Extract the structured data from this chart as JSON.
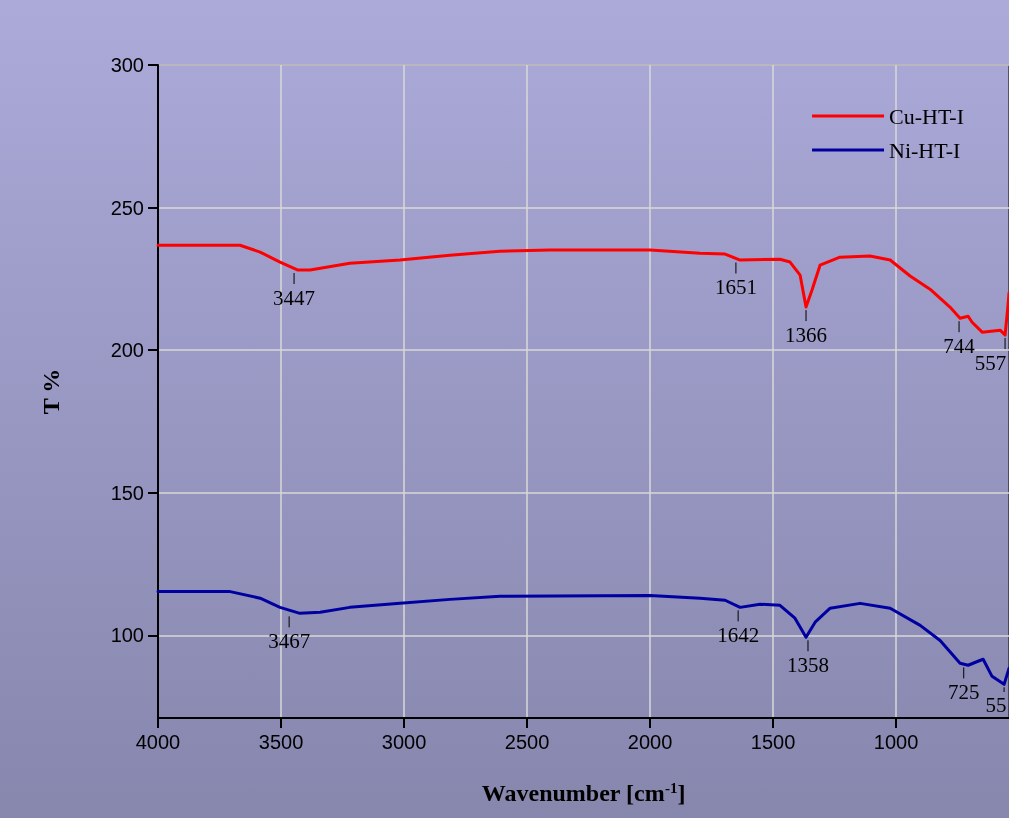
{
  "chart_data": {
    "type": "line",
    "xlabel": "Wavenumber [cm$^{-1}$]",
    "ylabel": "T %",
    "xlim": [
      4000,
      541
    ],
    "xticks": [
      4000,
      3500,
      3000,
      2500,
      2000,
      1500,
      1000
    ],
    "ylim": [
      71,
      300
    ],
    "yticks": [
      100,
      150,
      200,
      250,
      300
    ],
    "grid": true,
    "legend": "top right",
    "marker": "none",
    "line_style": "solid",
    "series": [
      {
        "name": "Cu-HT-I",
        "color": "#ff0000",
        "x": [
          4000,
          3667,
          3585,
          3504,
          3431,
          3382,
          3220,
          3016,
          2813,
          2610,
          2407,
          2000,
          1797,
          1695,
          1634,
          1472,
          1431,
          1390,
          1366,
          1342,
          1309,
          1228,
          1106,
          1024,
          943,
          862,
          781,
          740,
          707,
          691,
          650,
          577,
          557,
          545,
          541
        ],
        "values": [
          236.8,
          236.8,
          234.4,
          230.9,
          228.1,
          228.1,
          230.5,
          231.6,
          233.3,
          234.7,
          235.1,
          235.1,
          234.0,
          233.7,
          231.6,
          231.9,
          230.9,
          226.3,
          215.1,
          221,
          229.8,
          232.6,
          233,
          231.6,
          226,
          221.4,
          215.1,
          211.2,
          211.9,
          209.8,
          206.3,
          207,
          205.3,
          215.8,
          220
        ]
      },
      {
        "name": "Ni-HT-I",
        "color": "#0000a0",
        "x": [
          4000,
          3711,
          3585,
          3504,
          3423,
          3341,
          3220,
          3016,
          2813,
          2610,
          2000,
          1797,
          1695,
          1634,
          1553,
          1472,
          1411,
          1366,
          1329,
          1268,
          1146,
          1024,
          902,
          821,
          740,
          707,
          667,
          646,
          610,
          561,
          541
        ],
        "values": [
          115.4,
          115.4,
          113,
          109.8,
          107.7,
          108.1,
          109.8,
          111.2,
          112.6,
          113.7,
          114,
          113,
          112.3,
          109.8,
          110.9,
          110.5,
          106,
          99.3,
          104.6,
          109.5,
          111.2,
          109.5,
          103.5,
          98.2,
          90.2,
          89.5,
          90.9,
          91.6,
          85.6,
          82.8,
          88.4
        ]
      }
    ],
    "annotations": [
      {
        "text": "3447",
        "x": 3447,
        "y": 228.1
      },
      {
        "text": "1651",
        "x": 1651,
        "y": 231.8
      },
      {
        "text": "1366",
        "x": 1366,
        "y": 215.1
      },
      {
        "text": "744",
        "x": 744,
        "y": 211.2
      },
      {
        "text": "557",
        "x": 557,
        "y": 205.3
      },
      {
        "text": "3467",
        "x": 3467,
        "y": 107.7
      },
      {
        "text": "1642",
        "x": 1642,
        "y": 109.8
      },
      {
        "text": "1358",
        "x": 1358,
        "y": 99.3
      },
      {
        "text": "725",
        "x": 725,
        "y": 89.8
      },
      {
        "text": "55",
        "x": 561,
        "y": 82.8
      }
    ]
  }
}
